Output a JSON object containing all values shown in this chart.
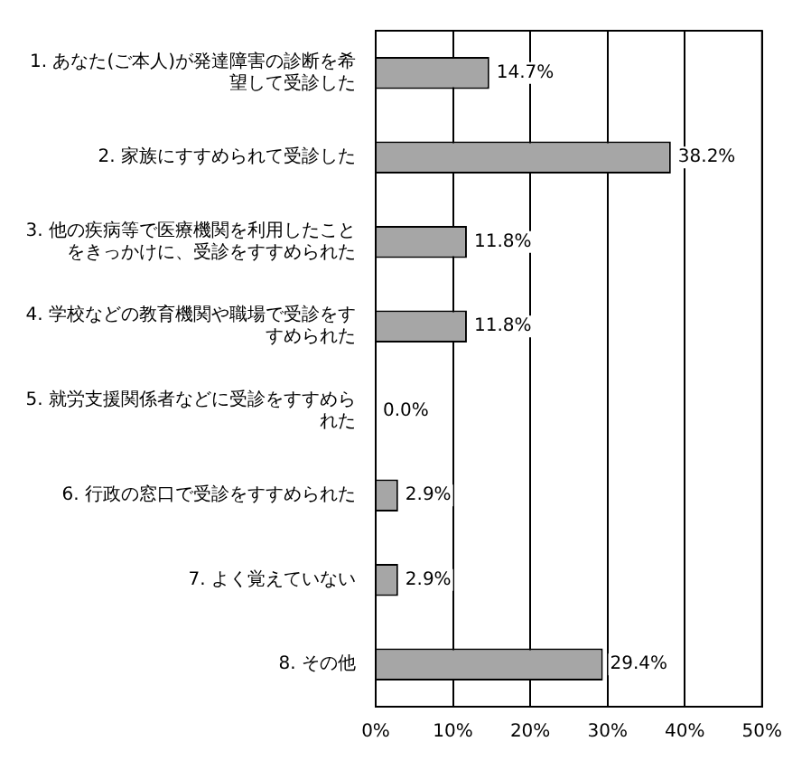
{
  "chart_data": {
    "type": "bar",
    "orientation": "horizontal",
    "categories": [
      "1. あなた(ご本人)が発達障害の診断を希望して受診した",
      "2. 家族にすすめられて受診した",
      "3. 他の疾病等で医療機関を利用したことをきっかけに、受診をすすめられた",
      "4. 学校などの教育機関や職場で受診をすすめられた",
      "5. 就労支援関係者などに受診をすすめられた",
      "6. 行政の窓口で受診をすすめられた",
      "7. よく覚えていない",
      "8. その他"
    ],
    "values": [
      14.7,
      38.2,
      11.8,
      11.8,
      0.0,
      2.9,
      2.9,
      29.4
    ],
    "value_labels": [
      "14.7%",
      "38.2%",
      "11.8%",
      "11.8%",
      "0.0%",
      "2.9%",
      "2.9%",
      "29.4%"
    ],
    "color": "#a6a6a6",
    "xlim": [
      0,
      50
    ],
    "xticks": [
      {
        "value": 0,
        "label": "0%"
      },
      {
        "value": 10,
        "label": "10%"
      },
      {
        "value": 20,
        "label": "20%"
      },
      {
        "value": 30,
        "label": "30%"
      },
      {
        "value": 40,
        "label": "40%"
      },
      {
        "value": 50,
        "label": "50%"
      }
    ],
    "grid": "x",
    "legend": false
  }
}
